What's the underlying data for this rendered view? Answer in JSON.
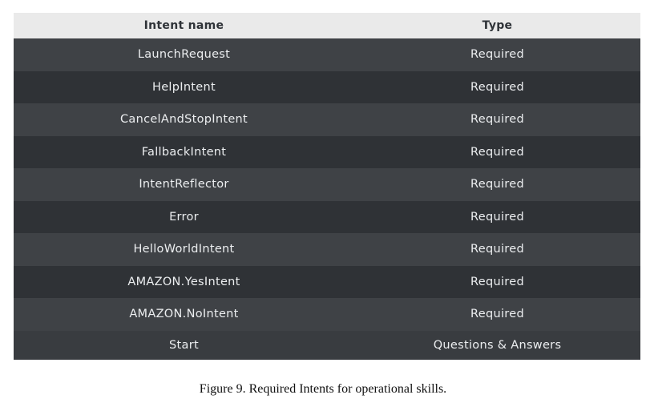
{
  "table": {
    "headers": [
      "Intent name",
      "Type"
    ],
    "rows": [
      [
        "LaunchRequest",
        "Required"
      ],
      [
        "HelpIntent",
        "Required"
      ],
      [
        "CancelAndStopIntent",
        "Required"
      ],
      [
        "FallbackIntent",
        "Required"
      ],
      [
        "IntentReflector",
        "Required"
      ],
      [
        "Error",
        "Required"
      ],
      [
        "HelloWorldIntent",
        "Required"
      ],
      [
        "AMAZON.YesIntent",
        "Required"
      ],
      [
        "AMAZON.NoIntent",
        "Required"
      ],
      [
        "Start",
        "Questions & Answers"
      ]
    ]
  },
  "caption": "Figure 9.  Required Intents for operational skills."
}
